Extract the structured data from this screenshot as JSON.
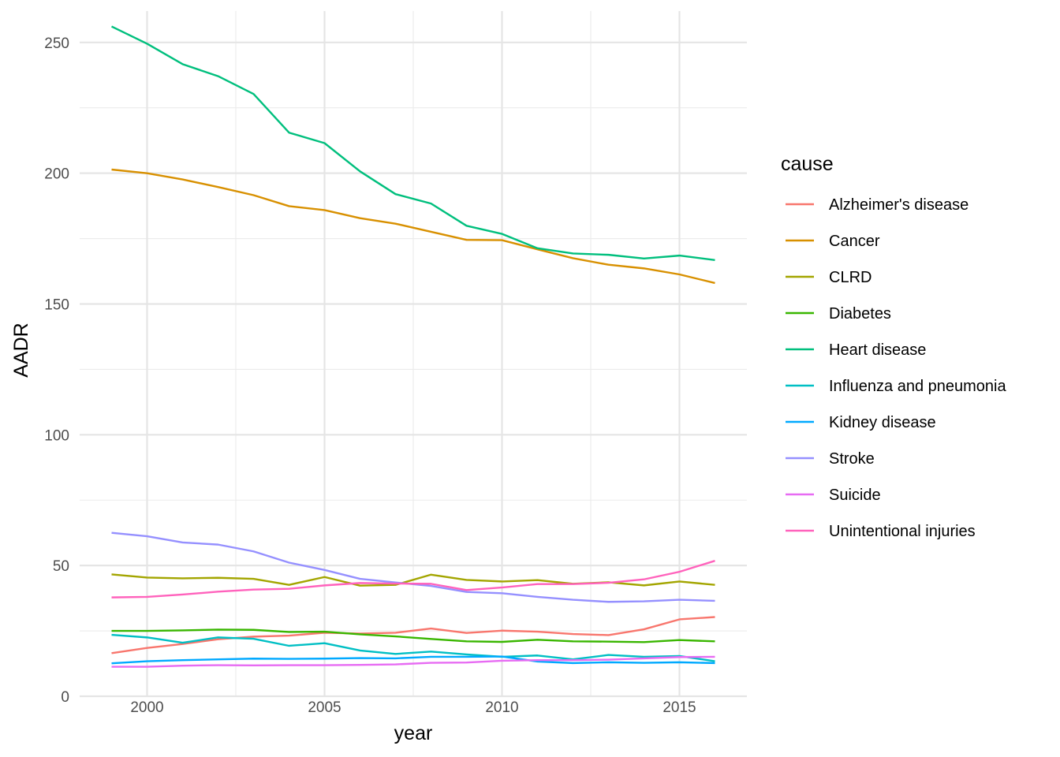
{
  "chart_data": {
    "type": "line",
    "xlabel": "year",
    "ylabel": "AADR",
    "xlim": [
      1998.1,
      2016.9
    ],
    "ylim": [
      0,
      262
    ],
    "x_ticks": [
      2000,
      2005,
      2010,
      2015
    ],
    "y_ticks": [
      0,
      50,
      100,
      150,
      200,
      250
    ],
    "grid": true,
    "legend": {
      "title": "cause",
      "position": "right"
    },
    "x": [
      1999,
      2000,
      2001,
      2002,
      2003,
      2004,
      2005,
      2006,
      2007,
      2008,
      2009,
      2010,
      2011,
      2012,
      2013,
      2014,
      2015,
      2016
    ],
    "series": [
      {
        "name": "Alzheimer's disease",
        "color": "#F8766D",
        "values": [
          16.5,
          18.5,
          20.0,
          21.8,
          22.8,
          23.2,
          24.3,
          24.0,
          24.3,
          25.9,
          24.2,
          25.1,
          24.7,
          23.8,
          23.4,
          25.6,
          29.4,
          30.3
        ]
      },
      {
        "name": "Cancer",
        "color": "#D89000",
        "values": [
          201.4,
          200.0,
          197.6,
          194.7,
          191.6,
          187.4,
          185.9,
          182.8,
          180.7,
          177.6,
          174.5,
          174.4,
          170.9,
          167.5,
          165.0,
          163.6,
          161.3,
          158.0
        ]
      },
      {
        "name": "CLRD",
        "color": "#A3A500",
        "values": [
          46.6,
          45.4,
          45.1,
          45.3,
          44.9,
          42.6,
          45.6,
          42.3,
          42.6,
          46.5,
          44.5,
          43.9,
          44.4,
          43.0,
          43.6,
          42.4,
          43.9,
          42.6
        ]
      },
      {
        "name": "Diabetes",
        "color": "#39B600",
        "values": [
          25.0,
          25.0,
          25.2,
          25.5,
          25.4,
          24.6,
          24.7,
          23.7,
          22.9,
          21.9,
          21.0,
          20.8,
          21.6,
          21.0,
          20.9,
          20.7,
          21.5,
          21.0
        ]
      },
      {
        "name": "Heart disease",
        "color": "#00BF7D",
        "values": [
          256.1,
          249.5,
          241.7,
          237.1,
          230.3,
          215.5,
          211.5,
          200.7,
          192.0,
          188.4,
          179.9,
          176.8,
          171.3,
          169.3,
          168.8,
          167.4,
          168.5,
          166.8
        ]
      },
      {
        "name": "Influenza and pneumonia",
        "color": "#00BFC4",
        "values": [
          23.5,
          22.5,
          20.5,
          22.5,
          22.0,
          19.3,
          20.3,
          17.5,
          16.2,
          17.1,
          16.0,
          15.1,
          15.6,
          14.1,
          15.8,
          15.1,
          15.4,
          13.4
        ]
      },
      {
        "name": "Kidney disease",
        "color": "#00A9FF",
        "values": [
          12.6,
          13.4,
          13.8,
          14.1,
          14.4,
          14.3,
          14.4,
          14.6,
          14.5,
          15.1,
          15.1,
          15.2,
          13.3,
          12.7,
          13.0,
          12.8,
          13.0,
          12.7
        ]
      },
      {
        "name": "Stroke",
        "color": "#9590FF",
        "values": [
          62.5,
          61.2,
          58.8,
          58.0,
          55.4,
          51.1,
          48.3,
          44.9,
          43.5,
          42.2,
          39.9,
          39.4,
          38.0,
          36.9,
          36.1,
          36.3,
          36.9,
          36.5
        ]
      },
      {
        "name": "Suicide",
        "color": "#E76BF3",
        "values": [
          11.3,
          11.3,
          11.7,
          11.9,
          11.8,
          11.9,
          11.9,
          12.0,
          12.2,
          12.8,
          12.9,
          13.6,
          13.8,
          13.8,
          14.0,
          14.5,
          15.0,
          15.1
        ]
      },
      {
        "name": "Unintentional injuries",
        "color": "#FF62BC",
        "values": [
          37.8,
          38.0,
          38.9,
          40.0,
          40.8,
          41.1,
          42.4,
          43.3,
          43.1,
          43.0,
          40.6,
          41.6,
          42.9,
          42.9,
          43.4,
          44.7,
          47.6,
          51.8
        ]
      }
    ]
  }
}
